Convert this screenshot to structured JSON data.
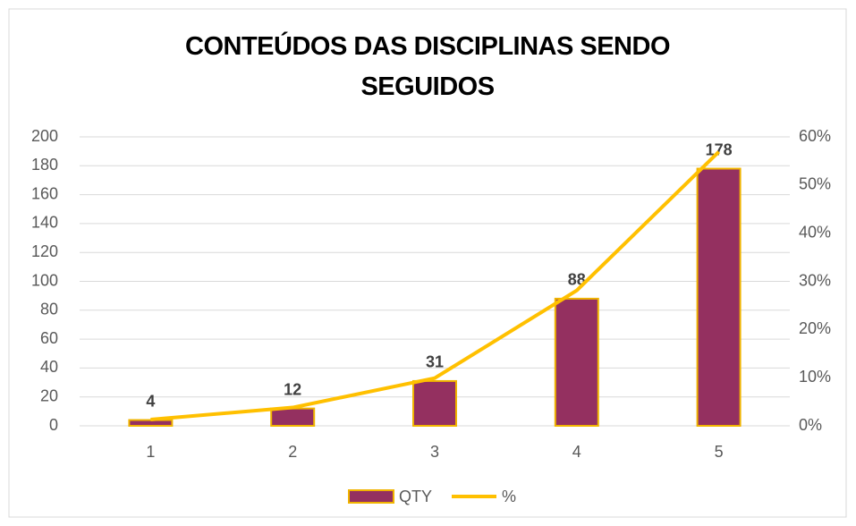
{
  "chart_data": {
    "type": "bar",
    "title": "CONTEÚDOS DAS DISCIPLINAS SENDO SEGUIDOS",
    "categories": [
      "1",
      "2",
      "3",
      "4",
      "5"
    ],
    "series": [
      {
        "name": "QTY",
        "type": "bar",
        "color": "#943060",
        "edge_color": "#f0b400",
        "values": [
          4,
          12,
          31,
          88,
          178
        ],
        "show_labels": true
      },
      {
        "name": "%",
        "type": "line",
        "axis": "y2",
        "color": "#ffc000",
        "values": [
          1.3,
          3.8,
          9.9,
          28.1,
          56.9
        ]
      }
    ],
    "ylim": [
      0,
      200
    ],
    "yticks": [
      0,
      20,
      40,
      60,
      80,
      100,
      120,
      140,
      160,
      180,
      200
    ],
    "y2lim": [
      0,
      60
    ],
    "y2ticks": [
      {
        "value": 0,
        "label": "0%"
      },
      {
        "value": 10,
        "label": "10%"
      },
      {
        "value": 20,
        "label": "20%"
      },
      {
        "value": 30,
        "label": "30%"
      },
      {
        "value": 40,
        "label": "40%"
      },
      {
        "value": 50,
        "label": "50%"
      },
      {
        "value": 60,
        "label": "60%"
      }
    ],
    "grid": true,
    "legend": "bottom"
  }
}
